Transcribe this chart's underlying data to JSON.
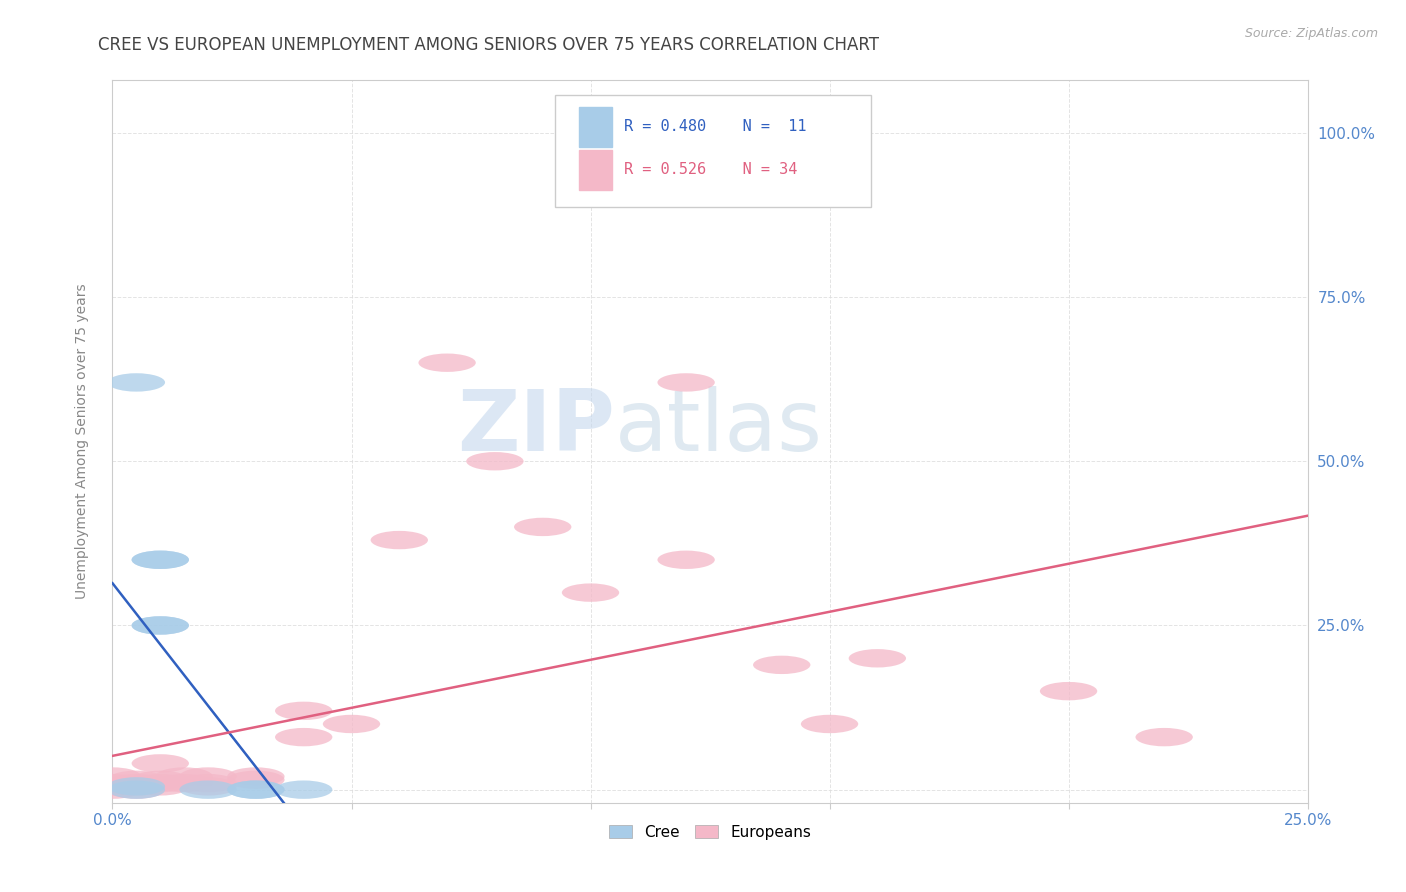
{
  "title": "CREE VS EUROPEAN UNEMPLOYMENT AMONG SENIORS OVER 75 YEARS CORRELATION CHART",
  "source": "Source: ZipAtlas.com",
  "ylabel": "Unemployment Among Seniors over 75 years",
  "xlim": [
    0.0,
    0.25
  ],
  "ylim": [
    -0.02,
    1.08
  ],
  "xticks": [
    0.0,
    0.05,
    0.1,
    0.15,
    0.2,
    0.25
  ],
  "xticklabels": [
    "0.0%",
    "",
    "",
    "",
    "",
    "25.0%"
  ],
  "yticks": [
    0.0,
    0.25,
    0.5,
    0.75,
    1.0
  ],
  "yticklabels": [
    "",
    "25.0%",
    "50.0%",
    "75.0%",
    "100.0%"
  ],
  "cree_color": "#a8cce8",
  "european_color": "#f4b8c8",
  "cree_line_color": "#3060c0",
  "european_line_color": "#e06080",
  "cree_R": 0.48,
  "cree_N": 11,
  "european_R": 0.526,
  "european_N": 34,
  "cree_x": [
    0.005,
    0.005,
    0.005,
    0.01,
    0.01,
    0.01,
    0.01,
    0.02,
    0.03,
    0.03,
    0.04
  ],
  "cree_y": [
    0.0,
    0.005,
    0.62,
    0.35,
    0.35,
    0.25,
    0.25,
    0.0,
    0.0,
    0.0,
    0.0
  ],
  "european_x": [
    0.0,
    0.0,
    0.0,
    0.0,
    0.005,
    0.005,
    0.005,
    0.005,
    0.01,
    0.01,
    0.01,
    0.01,
    0.015,
    0.015,
    0.02,
    0.02,
    0.02,
    0.03,
    0.03,
    0.04,
    0.04,
    0.05,
    0.06,
    0.07,
    0.08,
    0.09,
    0.1,
    0.12,
    0.12,
    0.14,
    0.15,
    0.16,
    0.2,
    0.22
  ],
  "european_y": [
    0.0,
    0.005,
    0.01,
    0.02,
    0.0,
    0.005,
    0.01,
    0.015,
    0.005,
    0.01,
    0.015,
    0.04,
    0.01,
    0.02,
    0.005,
    0.01,
    0.02,
    0.015,
    0.02,
    0.08,
    0.12,
    0.1,
    0.38,
    0.65,
    0.5,
    0.4,
    0.3,
    0.35,
    0.62,
    0.19,
    0.1,
    0.2,
    0.15,
    0.08
  ],
  "watermark_zip": "ZIP",
  "watermark_atlas": "atlas",
  "background_color": "#ffffff",
  "grid_color": "#dddddd",
  "title_color": "#444444",
  "tick_color": "#5588cc",
  "ylabel_color": "#888888"
}
